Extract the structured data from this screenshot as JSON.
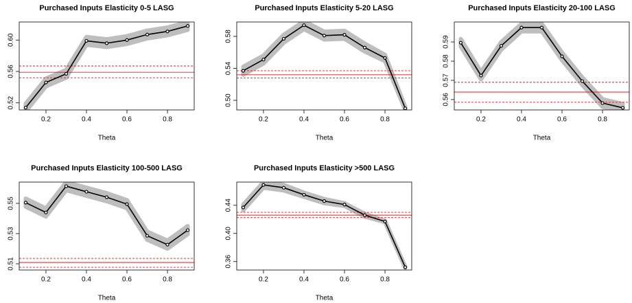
{
  "chart_data": [
    {
      "type": "line",
      "title": "Purchased Inputs Elasticity 0-5 LASG",
      "xlabel": "Theta",
      "x": [
        0.1,
        0.2,
        0.3,
        0.4,
        0.5,
        0.6,
        0.7,
        0.8,
        0.9
      ],
      "values": [
        0.514,
        0.546,
        0.557,
        0.599,
        0.596,
        0.6,
        0.607,
        0.611,
        0.618
      ],
      "lower": [
        0.509,
        0.541,
        0.552,
        0.594,
        0.591,
        0.595,
        0.602,
        0.606,
        0.613
      ],
      "upper": [
        0.519,
        0.551,
        0.562,
        0.604,
        0.601,
        0.605,
        0.612,
        0.616,
        0.623
      ],
      "color": "#000000",
      "band_color": "#bebebe",
      "hline": {
        "value": 0.559,
        "lower": 0.552,
        "upper": 0.567,
        "color": "#e8191c"
      },
      "xlim": [
        0.068,
        0.932
      ],
      "ylim": [
        0.511,
        0.623
      ],
      "xticks": [
        0.2,
        0.4,
        0.6,
        0.8
      ],
      "yticks": [
        0.52,
        0.56,
        {
          "value": 0.6,
          "label": "0.60"
        }
      ]
    },
    {
      "type": "line",
      "title": "Purchased Inputs Elasticity 5-20 LASG",
      "xlabel": "Theta",
      "x": [
        0.1,
        0.2,
        0.3,
        0.4,
        0.5,
        0.6,
        0.7,
        0.8,
        0.9
      ],
      "values": [
        0.537,
        0.551,
        0.577,
        0.594,
        0.581,
        0.582,
        0.566,
        0.553,
        0.49
      ],
      "lower": [
        0.532,
        0.546,
        0.572,
        0.589,
        0.576,
        0.577,
        0.561,
        0.549,
        0.488
      ],
      "upper": [
        0.542,
        0.556,
        0.582,
        0.599,
        0.586,
        0.587,
        0.571,
        0.557,
        0.492
      ],
      "color": "#000000",
      "band_color": "#bebebe",
      "hline": {
        "value": 0.532,
        "lower": 0.528,
        "upper": 0.537,
        "color": "#e8191c"
      },
      "xlim": [
        0.068,
        0.932
      ],
      "ylim": [
        0.488,
        0.598
      ],
      "xticks": [
        0.2,
        0.4,
        0.6,
        0.8
      ],
      "yticks": [
        {
          "value": 0.5,
          "label": "0.50"
        },
        0.54,
        0.58
      ]
    },
    {
      "type": "line",
      "title": "Purchased Inputs Elasticity 20-100 LASG",
      "xlabel": "Theta",
      "x": [
        0.1,
        0.2,
        0.3,
        0.4,
        0.5,
        0.6,
        0.7,
        0.8,
        0.9
      ],
      "values": [
        0.5896,
        0.5725,
        0.588,
        0.5975,
        0.5975,
        0.5825,
        0.5696,
        0.5582,
        0.5557
      ],
      "lower": [
        0.5876,
        0.5705,
        0.586,
        0.5955,
        0.5955,
        0.5805,
        0.5676,
        0.5562,
        0.5537
      ],
      "upper": [
        0.5916,
        0.5745,
        0.59,
        0.5995,
        0.5995,
        0.5845,
        0.5716,
        0.5602,
        0.5577
      ],
      "color": "#000000",
      "band_color": "#bebebe",
      "hline": {
        "value": 0.5639,
        "lower": 0.5586,
        "upper": 0.569,
        "color": "#e8191c"
      },
      "xlim": [
        0.068,
        0.932
      ],
      "ylim": [
        0.5546,
        0.6004
      ],
      "xticks": [
        0.2,
        0.4,
        0.6,
        0.8
      ],
      "yticks": [
        0.56,
        0.57,
        0.58,
        0.59
      ]
    },
    {
      "type": "line",
      "title": "Purchased Inputs Elasticity 100-500 LASG",
      "xlabel": "Theta",
      "x": [
        0.1,
        0.2,
        0.3,
        0.4,
        0.5,
        0.6,
        0.7,
        0.8,
        0.9
      ],
      "values": [
        0.5505,
        0.544,
        0.5614,
        0.5577,
        0.5541,
        0.5495,
        0.5286,
        0.5227,
        0.5323
      ],
      "lower": [
        0.5478,
        0.5413,
        0.5587,
        0.555,
        0.5514,
        0.5468,
        0.5259,
        0.52,
        0.5296
      ],
      "upper": [
        0.5532,
        0.5467,
        0.5641,
        0.5604,
        0.5568,
        0.5522,
        0.5313,
        0.5254,
        0.535
      ],
      "color": "#000000",
      "band_color": "#bebebe",
      "hline": {
        "value": 0.5109,
        "lower": 0.5077,
        "upper": 0.5136,
        "color": "#e8191c"
      },
      "xlim": [
        0.068,
        0.932
      ],
      "ylim": [
        0.5059,
        0.5641
      ],
      "xticks": [
        0.2,
        0.4,
        0.6,
        0.8
      ],
      "yticks": [
        0.51,
        0.53,
        0.55
      ]
    },
    {
      "type": "line",
      "title": "Purchased Inputs Elasticity >500 LASG",
      "xlabel": "Theta",
      "x": [
        0.1,
        0.2,
        0.3,
        0.4,
        0.5,
        0.6,
        0.7,
        0.8,
        0.9
      ],
      "values": [
        0.437,
        0.469,
        0.465,
        0.455,
        0.446,
        0.441,
        0.426,
        0.417,
        0.352
      ],
      "lower": [
        0.433,
        0.465,
        0.461,
        0.452,
        0.443,
        0.439,
        0.424,
        0.416,
        0.351
      ],
      "upper": [
        0.441,
        0.473,
        0.469,
        0.458,
        0.449,
        0.443,
        0.428,
        0.418,
        0.353
      ],
      "color": "#000000",
      "band_color": "#bebebe",
      "hline": {
        "value": 0.426,
        "lower": 0.4225,
        "upper": 0.43,
        "color": "#e8191c"
      },
      "xlim": [
        0.068,
        0.932
      ],
      "ylim": [
        0.348,
        0.473
      ],
      "xticks": [
        0.2,
        0.4,
        0.6,
        0.8
      ],
      "yticks": [
        0.36,
        {
          "value": 0.4,
          "label": "0.40"
        },
        0.44
      ]
    }
  ]
}
